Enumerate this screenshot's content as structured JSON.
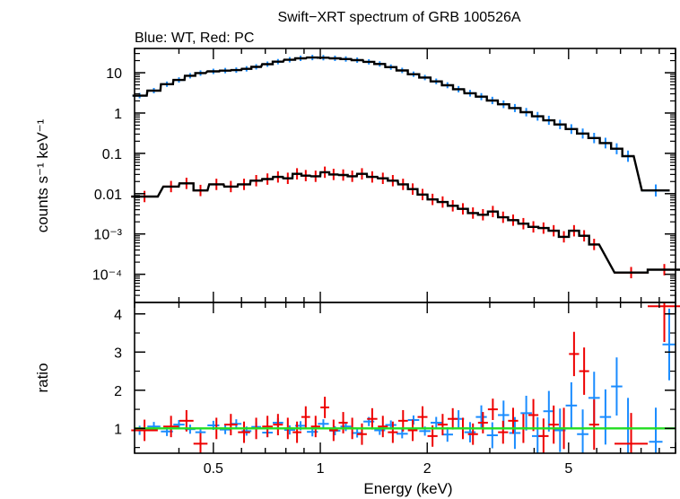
{
  "chart_data": [
    {
      "type": "scatter",
      "title": "Swift−XRT spectrum of GRB 100526A",
      "subtitle": "Blue: WT, Red: PC",
      "ylabel": "counts s⁻¹ keV⁻¹",
      "xlabel": "",
      "x_scale": "log",
      "y_scale": "log",
      "xlim": [
        0.3,
        10
      ],
      "ylim": [
        2e-05,
        40
      ],
      "yticks": [
        {
          "value": 10,
          "label": "10"
        },
        {
          "value": 1,
          "label": "1"
        },
        {
          "value": 0.1,
          "label": "0.1"
        },
        {
          "value": 0.01,
          "label": "0.01"
        },
        {
          "value": 0.001,
          "label": "10⁻³"
        },
        {
          "value": 0.0001,
          "label": "10⁻⁴"
        }
      ],
      "series": [
        {
          "color": "#1a8cff",
          "points": [
            [
              0.31,
              2.7
            ],
            [
              0.34,
              3.6
            ],
            [
              0.37,
              5.2
            ],
            [
              0.4,
              6.6
            ],
            [
              0.43,
              8.4
            ],
            [
              0.46,
              9.8
            ],
            [
              0.5,
              10.8
            ],
            [
              0.54,
              11.3
            ],
            [
              0.58,
              11.6
            ],
            [
              0.62,
              12.5
            ],
            [
              0.66,
              14.0
            ],
            [
              0.71,
              16.3
            ],
            [
              0.76,
              18.8
            ],
            [
              0.82,
              21.0
            ],
            [
              0.88,
              22.8
            ],
            [
              0.95,
              23.8
            ],
            [
              1.02,
              23.6
            ],
            [
              1.1,
              22.8
            ],
            [
              1.18,
              21.9
            ],
            [
              1.27,
              20.5
            ],
            [
              1.37,
              18.6
            ],
            [
              1.47,
              16.5
            ],
            [
              1.58,
              13.8
            ],
            [
              1.7,
              11.4
            ],
            [
              1.83,
              9.2
            ],
            [
              1.97,
              7.6
            ],
            [
              2.12,
              6.1
            ],
            [
              2.28,
              4.9
            ],
            [
              2.45,
              3.9
            ],
            [
              2.64,
              3.1
            ],
            [
              2.84,
              2.55
            ],
            [
              3.05,
              2.05
            ],
            [
              3.28,
              1.65
            ],
            [
              3.53,
              1.33
            ],
            [
              3.8,
              1.05
            ],
            [
              4.09,
              0.83
            ],
            [
              4.4,
              0.66
            ],
            [
              4.73,
              0.52
            ],
            [
              5.09,
              0.4
            ],
            [
              5.48,
              0.31
            ],
            [
              5.9,
              0.24
            ],
            [
              6.35,
              0.18
            ],
            [
              6.83,
              0.13
            ],
            [
              7.35,
              0.085
            ],
            [
              8.8,
              0.012
            ]
          ]
        },
        {
          "color": "#ee0000",
          "points": [
            [
              0.32,
              0.0085
            ],
            [
              0.38,
              0.015
            ],
            [
              0.42,
              0.018
            ],
            [
              0.46,
              0.012
            ],
            [
              0.51,
              0.017
            ],
            [
              0.56,
              0.015
            ],
            [
              0.61,
              0.017
            ],
            [
              0.66,
              0.021
            ],
            [
              0.71,
              0.023
            ],
            [
              0.76,
              0.026
            ],
            [
              0.81,
              0.024
            ],
            [
              0.86,
              0.031
            ],
            [
              0.91,
              0.028
            ],
            [
              0.97,
              0.027
            ],
            [
              1.03,
              0.034
            ],
            [
              1.09,
              0.03
            ],
            [
              1.16,
              0.029
            ],
            [
              1.23,
              0.027
            ],
            [
              1.31,
              0.031
            ],
            [
              1.4,
              0.026
            ],
            [
              1.5,
              0.024
            ],
            [
              1.6,
              0.021
            ],
            [
              1.71,
              0.017
            ],
            [
              1.82,
              0.013
            ],
            [
              1.94,
              0.0095
            ],
            [
              2.07,
              0.0072
            ],
            [
              2.21,
              0.0062
            ],
            [
              2.36,
              0.005
            ],
            [
              2.52,
              0.0042
            ],
            [
              2.69,
              0.0033
            ],
            [
              2.87,
              0.003
            ],
            [
              3.06,
              0.0036
            ],
            [
              3.27,
              0.0026
            ],
            [
              3.49,
              0.0022
            ],
            [
              3.73,
              0.0018
            ],
            [
              3.98,
              0.0015
            ],
            [
              4.25,
              0.0014
            ],
            [
              4.54,
              0.0012
            ],
            [
              4.85,
              0.00085
            ],
            [
              5.18,
              0.0012
            ],
            [
              5.53,
              0.0009
            ],
            [
              5.9,
              0.00055
            ],
            [
              7.5,
              0.00011
            ],
            [
              9.3,
              0.00013
            ]
          ]
        }
      ]
    },
    {
      "type": "scatter",
      "xlabel": "Energy (keV)",
      "ylabel": "ratio",
      "x_scale": "log",
      "y_scale": "linear",
      "xlim": [
        0.3,
        10
      ],
      "ylim": [
        0.35,
        4.3
      ],
      "xticks": [
        {
          "value": 0.5,
          "label": "0.5"
        },
        {
          "value": 1,
          "label": "1"
        },
        {
          "value": 2,
          "label": "2"
        },
        {
          "value": 5,
          "label": "5"
        }
      ],
      "yticks": [
        {
          "value": 1,
          "label": "1"
        },
        {
          "value": 2,
          "label": "2"
        },
        {
          "value": 3,
          "label": "3"
        },
        {
          "value": 4,
          "label": "4"
        }
      ],
      "reference_line": {
        "value": 1,
        "color": "#22dd22"
      },
      "series": [
        {
          "color": "#1a8cff",
          "points": [
            [
              0.31,
              0.95
            ],
            [
              0.34,
              1.05
            ],
            [
              0.37,
              0.92
            ],
            [
              0.4,
              1.1
            ],
            [
              0.43,
              0.98
            ],
            [
              0.46,
              0.9
            ],
            [
              0.5,
              1.08
            ],
            [
              0.54,
              0.97
            ],
            [
              0.58,
              1.12
            ],
            [
              0.62,
              0.93
            ],
            [
              0.66,
              1.04
            ],
            [
              0.71,
              0.89
            ],
            [
              0.76,
              1.15
            ],
            [
              0.82,
              0.96
            ],
            [
              0.88,
              1.07
            ],
            [
              0.95,
              0.91
            ],
            [
              1.02,
              1.12
            ],
            [
              1.1,
              0.94
            ],
            [
              1.18,
              1.05
            ],
            [
              1.27,
              0.88
            ],
            [
              1.37,
              1.18
            ],
            [
              1.47,
              0.95
            ],
            [
              1.58,
              1.09
            ],
            [
              1.7,
              0.86
            ],
            [
              1.83,
              1.22
            ],
            [
              1.97,
              0.93
            ],
            [
              2.12,
              1.15
            ],
            [
              2.28,
              0.84
            ],
            [
              2.45,
              1.25
            ],
            [
              2.64,
              0.9
            ],
            [
              2.84,
              1.3
            ],
            [
              3.05,
              0.82
            ],
            [
              3.28,
              1.35
            ],
            [
              3.53,
              0.88
            ],
            [
              3.8,
              1.4
            ],
            [
              4.09,
              0.8
            ],
            [
              4.4,
              1.45
            ],
            [
              4.73,
              0.95
            ],
            [
              5.09,
              1.6
            ],
            [
              5.48,
              0.85
            ],
            [
              5.9,
              1.8
            ],
            [
              6.35,
              1.3
            ],
            [
              6.83,
              2.1
            ],
            [
              7.35,
              1.0
            ],
            [
              8.8,
              0.65
            ],
            [
              9.6,
              3.2
            ]
          ]
        },
        {
          "color": "#ee0000",
          "points": [
            [
              0.32,
              0.95
            ],
            [
              0.38,
              1.05
            ],
            [
              0.42,
              1.2
            ],
            [
              0.46,
              0.6
            ],
            [
              0.51,
              1.0
            ],
            [
              0.56,
              1.1
            ],
            [
              0.61,
              0.9
            ],
            [
              0.66,
              1.0
            ],
            [
              0.71,
              1.05
            ],
            [
              0.76,
              1.1
            ],
            [
              0.81,
              1.0
            ],
            [
              0.86,
              0.9
            ],
            [
              0.91,
              1.3
            ],
            [
              0.97,
              1.05
            ],
            [
              1.03,
              1.55
            ],
            [
              1.09,
              0.95
            ],
            [
              1.16,
              1.15
            ],
            [
              1.23,
              1.0
            ],
            [
              1.31,
              0.85
            ],
            [
              1.4,
              1.25
            ],
            [
              1.5,
              1.05
            ],
            [
              1.6,
              0.9
            ],
            [
              1.71,
              1.2
            ],
            [
              1.82,
              0.95
            ],
            [
              1.94,
              1.3
            ],
            [
              2.07,
              0.8
            ],
            [
              2.21,
              1.1
            ],
            [
              2.36,
              1.25
            ],
            [
              2.52,
              1.0
            ],
            [
              2.69,
              0.85
            ],
            [
              2.87,
              1.15
            ],
            [
              3.06,
              1.5
            ],
            [
              3.27,
              0.9
            ],
            [
              3.49,
              1.2
            ],
            [
              3.73,
              1.0
            ],
            [
              3.98,
              1.35
            ],
            [
              4.25,
              0.8
            ],
            [
              4.54,
              1.1
            ],
            [
              4.85,
              1.0
            ],
            [
              5.18,
              2.95
            ],
            [
              5.53,
              2.5
            ],
            [
              5.9,
              1.1
            ],
            [
              7.5,
              0.6
            ],
            [
              9.3,
              4.2
            ]
          ]
        }
      ]
    }
  ]
}
